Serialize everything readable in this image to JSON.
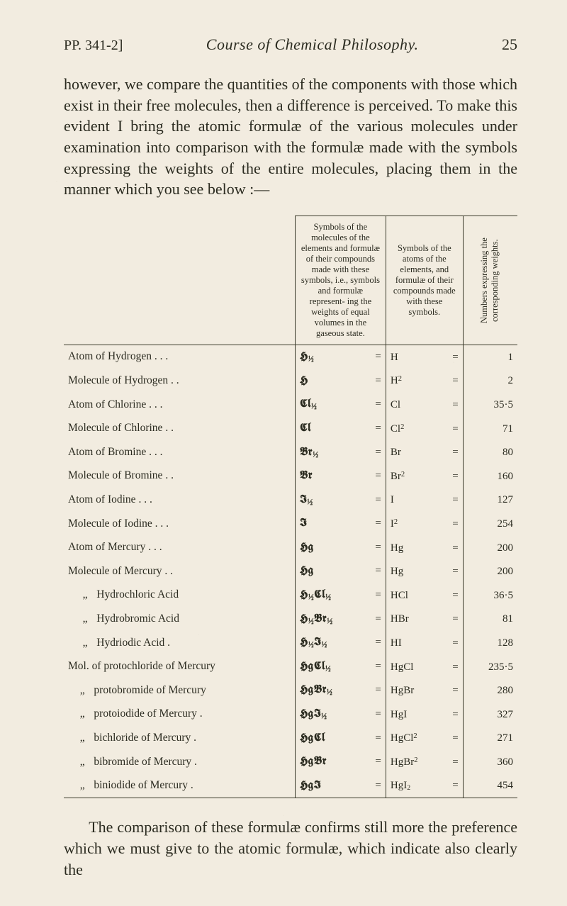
{
  "page": {
    "running_left": "PP. 341-2]",
    "running_title": "Course of Chemical Philosophy.",
    "page_number": "25"
  },
  "paragraph_top": "however, we compare the quantities of the components with those which exist in their free molecules, then a difference is perceived. To make this evident I bring the atomic formulæ of the various molecules under examination into comparison with the formulæ made with the symbols expressing the weights of the entire molecules, placing them in the manner which you see below :—",
  "table": {
    "head_col2": "Symbols of the molecules of the elements and formulæ of their compounds made with these symbols, i.e., symbols and formulæ represent- ing the weights of equal volumes in the gaseous state.",
    "head_col3": "Symbols of the atoms of the elements, and formulæ of their compounds made with these symbols.",
    "head_col4": "Numbers expressing the corresponding weights.",
    "rows": [
      {
        "desc": "Atom of Hydrogen .   .   .",
        "sym": "𝕳½",
        "atom": "H",
        "num": "1"
      },
      {
        "desc": "Molecule of Hydrogen   .   .",
        "sym": "𝕳",
        "atom": "H²",
        "num": "2"
      },
      {
        "desc": "Atom of Chlorine   .   .   .",
        "sym": "𝕮l½",
        "atom": "Cl",
        "num": "35·5"
      },
      {
        "desc": "Molecule of Chlorine   .   .",
        "sym": "𝕮l",
        "atom": "Cl²",
        "num": "71"
      },
      {
        "desc": "Atom of Bromine   .   .   .",
        "sym": "𝕭r½",
        "atom": "Br",
        "num": "80"
      },
      {
        "desc": "Molecule of Bromine   .   .",
        "sym": "𝕭r",
        "atom": "Br²",
        "num": "160"
      },
      {
        "desc": "Atom of Iodine   .   .   .",
        "sym": "𝕴½",
        "atom": "I",
        "num": "127"
      },
      {
        "desc": "Molecule of Iodine .   .   .",
        "sym": "𝕴",
        "atom": "I²",
        "num": "254"
      },
      {
        "desc": "Atom of Mercury   .   .   .",
        "sym": "𝕳g",
        "atom": "Hg",
        "num": "200"
      },
      {
        "desc": "Molecule of Mercury   .   .",
        "sym": "𝕳g",
        "atom": "Hg",
        "num": "200"
      },
      {
        "desc": "   „    Hydrochloric Acid",
        "sym": "𝕳½𝕮l½",
        "atom": "HCl",
        "num": "36·5"
      },
      {
        "desc": "   „    Hydrobromic Acid",
        "sym": "𝕳½𝕭r½",
        "atom": "HBr",
        "num": "81"
      },
      {
        "desc": "   „    Hydriodic Acid   .",
        "sym": "𝕳½𝕴½",
        "atom": "HI",
        "num": "128"
      },
      {
        "desc": "Mol. of protochloride of Mercury",
        "sym": "𝕳g𝕮l½",
        "atom": "HgCl",
        "num": "235·5"
      },
      {
        "desc": "  „   protobromide of Mercury",
        "sym": "𝕳g𝕭r½",
        "atom": "HgBr",
        "num": "280"
      },
      {
        "desc": "  „   protoiodide of Mercury .",
        "sym": "𝕳g𝕴½",
        "atom": "HgI",
        "num": "327"
      },
      {
        "desc": "  „   bichloride of Mercury   .",
        "sym": "𝕳g𝕮l",
        "atom": "HgCl²",
        "num": "271"
      },
      {
        "desc": "  „   bibromide of Mercury   .",
        "sym": "𝕳g𝕭r",
        "atom": "HgBr²",
        "num": "360"
      },
      {
        "desc": "  „   biniodide of Mercury   .",
        "sym": "𝕳g𝕴",
        "atom": "HgI₂",
        "num": "454"
      }
    ]
  },
  "paragraph_bottom": "The comparison of these formulæ confirms still more the preference which we must give to the atomic formulæ, which indicate also clearly the",
  "colors": {
    "page_bg": "#f2ece0",
    "text": "#2b2b20",
    "rule": "#3a3a2a"
  },
  "typography": {
    "body_fontsize_pt": 16,
    "table_fontsize_pt": 11,
    "header_fontsize_pt": 9,
    "font_family": "Times New Roman / serif, blackletter for symbols"
  }
}
